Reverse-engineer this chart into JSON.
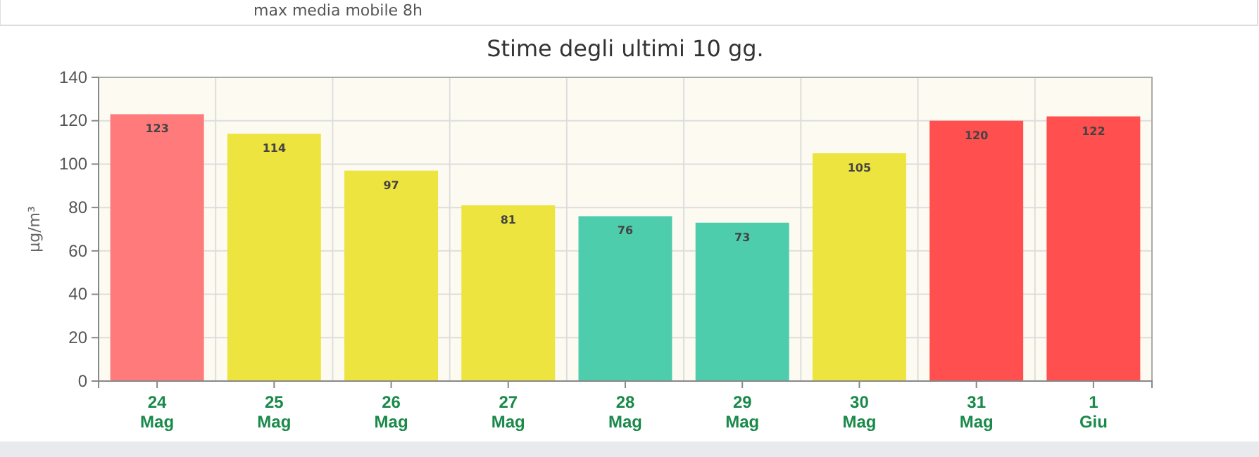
{
  "chart_data": {
    "type": "bar",
    "title": "Stime degli ultimi 10 gg.",
    "ylabel": "µg/m³",
    "annotations": [
      "max media mobile 8h"
    ],
    "categories": [
      "24 Mag",
      "25 Mag",
      "26 Mag",
      "27 Mag",
      "28 Mag",
      "29 Mag",
      "30 Mag",
      "31 Mag",
      "1 Giu"
    ],
    "values": [
      123,
      114,
      97,
      81,
      76,
      73,
      105,
      120,
      122
    ],
    "colors": [
      "#ff7a7a",
      "#ede43f",
      "#ede43f",
      "#ede43f",
      "#4ecdac",
      "#4ecdac",
      "#ede43f",
      "#ff4f4f",
      "#ff4f4f"
    ],
    "ylim": [
      0,
      140
    ],
    "yticks": [
      0,
      20,
      40,
      60,
      80,
      100,
      120,
      140
    ],
    "grid": true,
    "data_labels": true
  }
}
